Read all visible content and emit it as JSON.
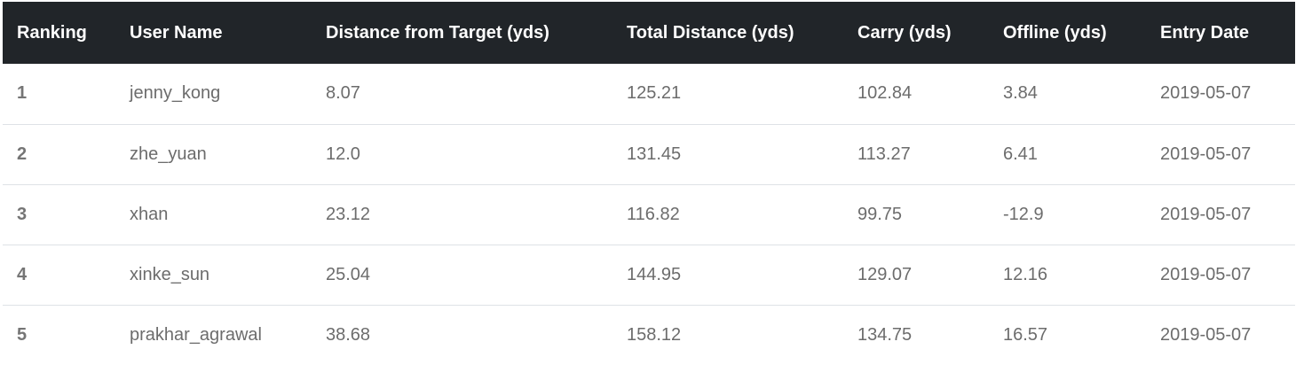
{
  "table": {
    "headers": [
      "Ranking",
      "User Name",
      "Distance from Target (yds)",
      "Total Distance (yds)",
      "Carry (yds)",
      "Offline (yds)",
      "Entry Date"
    ],
    "rows": [
      [
        "1",
        "jenny_kong",
        "8.07",
        "125.21",
        "102.84",
        "3.84",
        "2019-05-07"
      ],
      [
        "2",
        "zhe_yuan",
        "12.0",
        "131.45",
        "113.27",
        "6.41",
        "2019-05-07"
      ],
      [
        "3",
        "xhan",
        "23.12",
        "116.82",
        "99.75",
        "-12.9",
        "2019-05-07"
      ],
      [
        "4",
        "xinke_sun",
        "25.04",
        "144.95",
        "129.07",
        "12.16",
        "2019-05-07"
      ],
      [
        "5",
        "prakhar_agrawal",
        "38.68",
        "158.12",
        "134.75",
        "16.57",
        "2019-05-07"
      ]
    ]
  },
  "colors": {
    "header_background": "#212529",
    "header_text": "#ffffff",
    "body_text": "#6c6c6c",
    "row_divider": "#dee2e6"
  }
}
